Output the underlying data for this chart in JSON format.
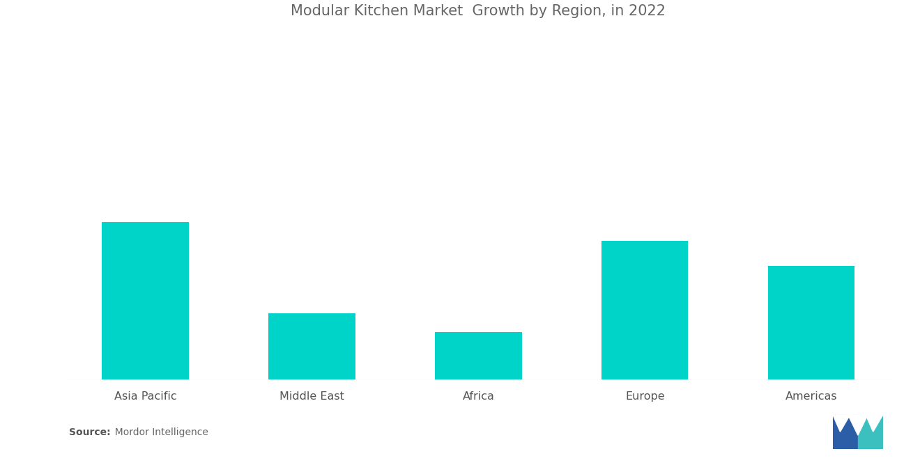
{
  "title": "Modular Kitchen Market  Growth by Region, in 2022",
  "categories": [
    "Asia Pacific",
    "Middle East",
    "Africa",
    "Europe",
    "Americas"
  ],
  "values": [
    100,
    42,
    30,
    88,
    72
  ],
  "bar_color": "#00D4C8",
  "background_color": "#ffffff",
  "title_fontsize": 15,
  "title_color": "#666666",
  "xlabel_fontsize": 11.5,
  "source_bold": "Source:",
  "source_detail": "  Mordor Intelligence",
  "ylim": [
    0,
    220
  ],
  "bar_width": 0.52
}
